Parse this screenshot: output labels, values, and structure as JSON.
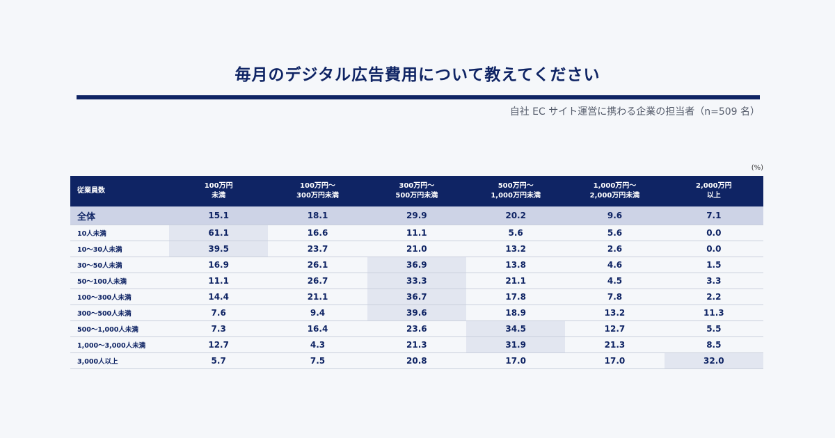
{
  "title": "毎月のデジタル広告費用について教えてください",
  "subtitle": "自社 EC サイト運営に携わる企業の担当者（n=509 名）",
  "unit": "(%)",
  "chart_data": {
    "type": "table",
    "header_corner": "従業員数",
    "columns": [
      [
        "100万円",
        "未満"
      ],
      [
        "100万円〜",
        "300万円未満"
      ],
      [
        "300万円〜",
        "500万円未満"
      ],
      [
        "500万円〜",
        "1,000万円未満"
      ],
      [
        "1,000万円〜",
        "2,000万円未満"
      ],
      [
        "2,000万円",
        "以上"
      ]
    ],
    "rows": [
      {
        "label": "全体",
        "values": [
          "15.1",
          "18.1",
          "29.9",
          "20.2",
          "9.6",
          "7.1"
        ],
        "highlight": -1
      },
      {
        "label": "10人未満",
        "values": [
          "61.1",
          "16.6",
          "11.1",
          "5.6",
          "5.6",
          "0.0"
        ],
        "highlight": 0
      },
      {
        "label": "10〜30人未満",
        "values": [
          "39.5",
          "23.7",
          "21.0",
          "13.2",
          "2.6",
          "0.0"
        ],
        "highlight": 0
      },
      {
        "label": "30〜50人未満",
        "values": [
          "16.9",
          "26.1",
          "36.9",
          "13.8",
          "4.6",
          "1.5"
        ],
        "highlight": 2
      },
      {
        "label": "50〜100人未満",
        "values": [
          "11.1",
          "26.7",
          "33.3",
          "21.1",
          "4.5",
          "3.3"
        ],
        "highlight": 2
      },
      {
        "label": "100〜300人未満",
        "values": [
          "14.4",
          "21.1",
          "36.7",
          "17.8",
          "7.8",
          "2.2"
        ],
        "highlight": 2
      },
      {
        "label": "300〜500人未満",
        "values": [
          "7.6",
          "9.4",
          "39.6",
          "18.9",
          "13.2",
          "11.3"
        ],
        "highlight": 2
      },
      {
        "label": "500〜1,000人未満",
        "values": [
          "7.3",
          "16.4",
          "23.6",
          "34.5",
          "12.7",
          "5.5"
        ],
        "highlight": 3
      },
      {
        "label": "1,000〜3,000人未満",
        "values": [
          "12.7",
          "4.3",
          "21.3",
          "31.9",
          "21.3",
          "8.5"
        ],
        "highlight": 3
      },
      {
        "label": "3,000人以上",
        "values": [
          "5.7",
          "7.5",
          "20.8",
          "17.0",
          "17.0",
          "32.0"
        ],
        "highlight": 5
      }
    ]
  }
}
